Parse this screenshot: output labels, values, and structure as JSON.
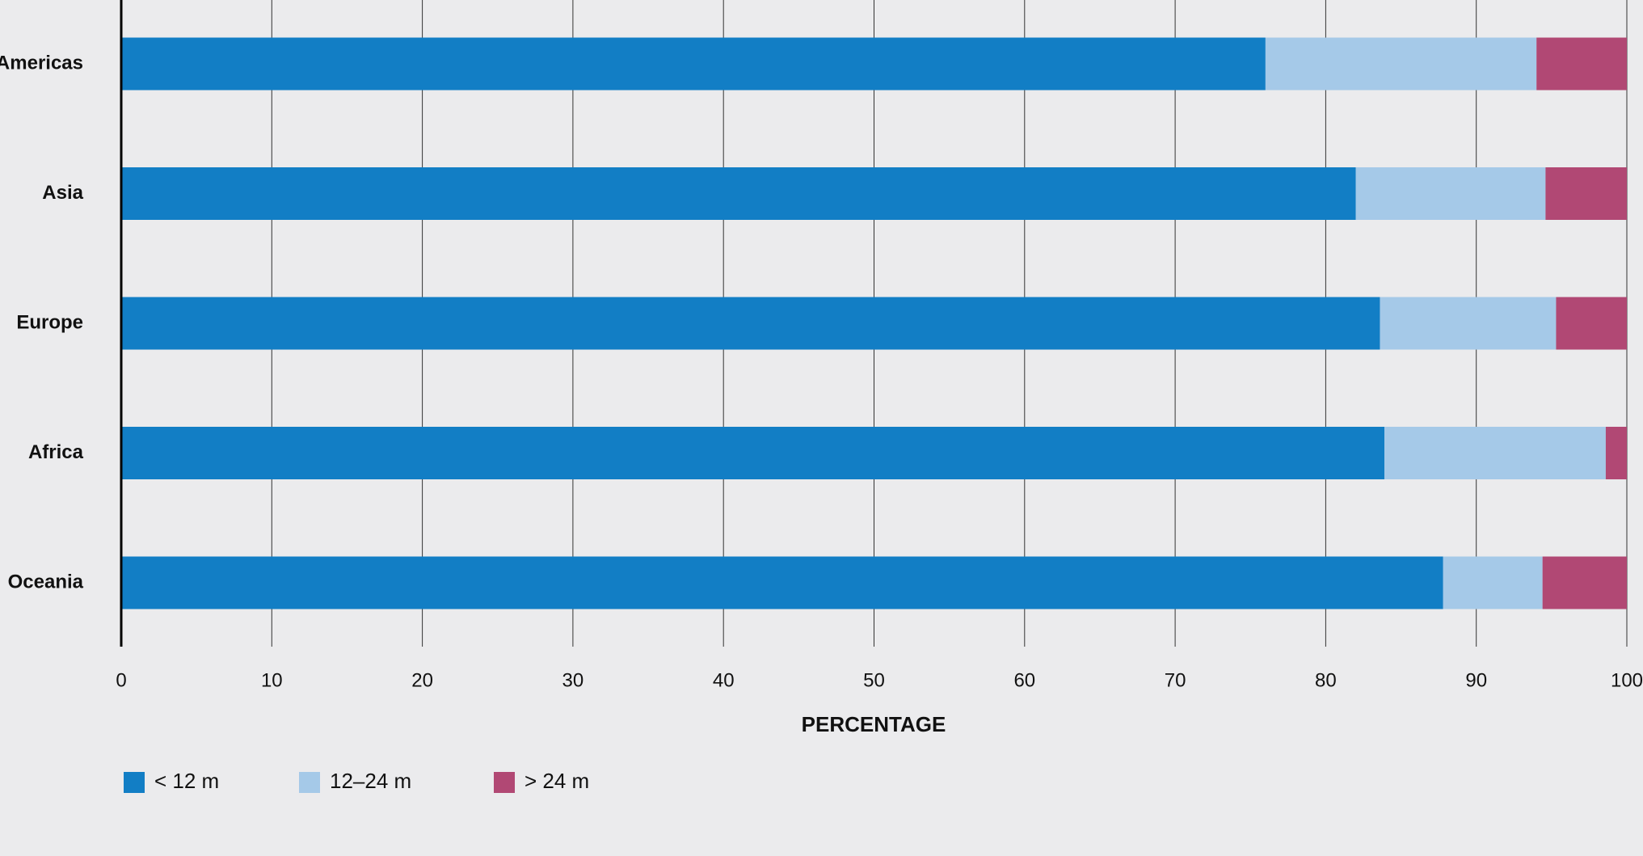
{
  "chart_data": {
    "type": "bar",
    "orientation": "horizontal",
    "stacked": true,
    "categories": [
      "Americas",
      "Asia",
      "Europe",
      "Africa",
      "Oceania"
    ],
    "series": [
      {
        "name": "< 12 m",
        "color": "#127ec5",
        "values": [
          76,
          82,
          83.6,
          83.9,
          87.8
        ]
      },
      {
        "name": "12–24 m",
        "color": "#a5c9e8",
        "values": [
          18,
          12.6,
          11.7,
          14.7,
          6.6
        ]
      },
      {
        "name": "> 24 m",
        "color": "#b14874",
        "values": [
          6,
          5.4,
          4.7,
          1.4,
          5.6
        ]
      }
    ],
    "xlabel": "PERCENTAGE",
    "xlim": [
      0,
      100
    ],
    "xticks": [
      0,
      10,
      20,
      30,
      40,
      50,
      60,
      70,
      80,
      90,
      100
    ],
    "grid": true,
    "legend": "bottom-left"
  }
}
